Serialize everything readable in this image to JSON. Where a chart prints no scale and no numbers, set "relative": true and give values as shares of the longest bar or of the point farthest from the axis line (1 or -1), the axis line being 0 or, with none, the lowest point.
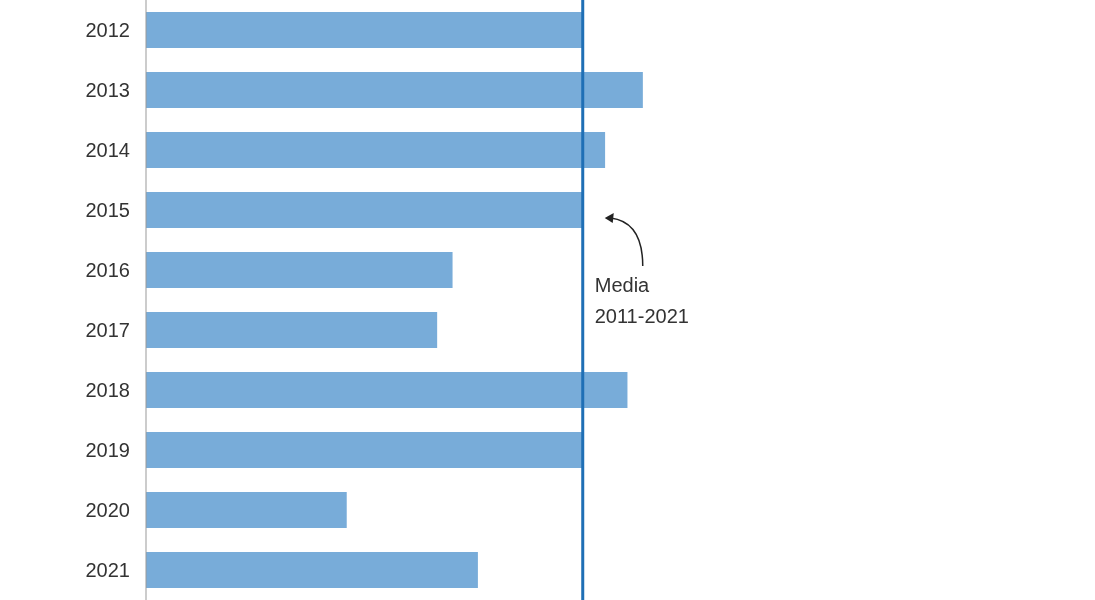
{
  "chart_data": {
    "type": "bar",
    "orientation": "horizontal",
    "relative": true,
    "categories": [
      "2012",
      "2013",
      "2014",
      "2015",
      "2016",
      "2017",
      "2018",
      "2019",
      "2020",
      "2021"
    ],
    "values": [
      0.879,
      1,
      0.924,
      0.879,
      0.617,
      0.586,
      0.969,
      0.879,
      0.404,
      0.668
    ],
    "color": "#78acd9",
    "ref_lines": [
      {
        "axis": "x",
        "value": 0.879,
        "label": "Media 2011-2021",
        "color": "#1f6fb5"
      }
    ]
  }
}
